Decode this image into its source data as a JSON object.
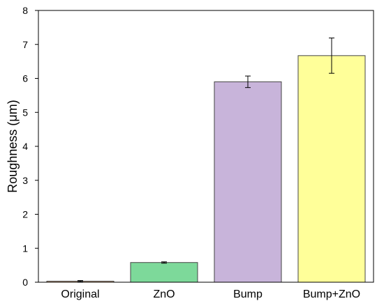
{
  "chart_data": {
    "type": "bar",
    "title": "",
    "xlabel": "",
    "ylabel": "Roughness (μm)",
    "categories": [
      "Original",
      "ZnO",
      "Bump",
      "Bump+ZnO"
    ],
    "values": [
      0.03,
      0.58,
      5.9,
      6.67
    ],
    "errors": [
      0.02,
      0.02,
      0.17,
      0.52
    ],
    "bar_colors": [
      "#ffcc99",
      "#7dd99a",
      "#c8b4da",
      "#ffff99"
    ],
    "ylim": [
      0,
      8
    ],
    "yticks": [
      0,
      1,
      2,
      3,
      4,
      5,
      6,
      7,
      8
    ],
    "grid": false,
    "legend": "none"
  }
}
